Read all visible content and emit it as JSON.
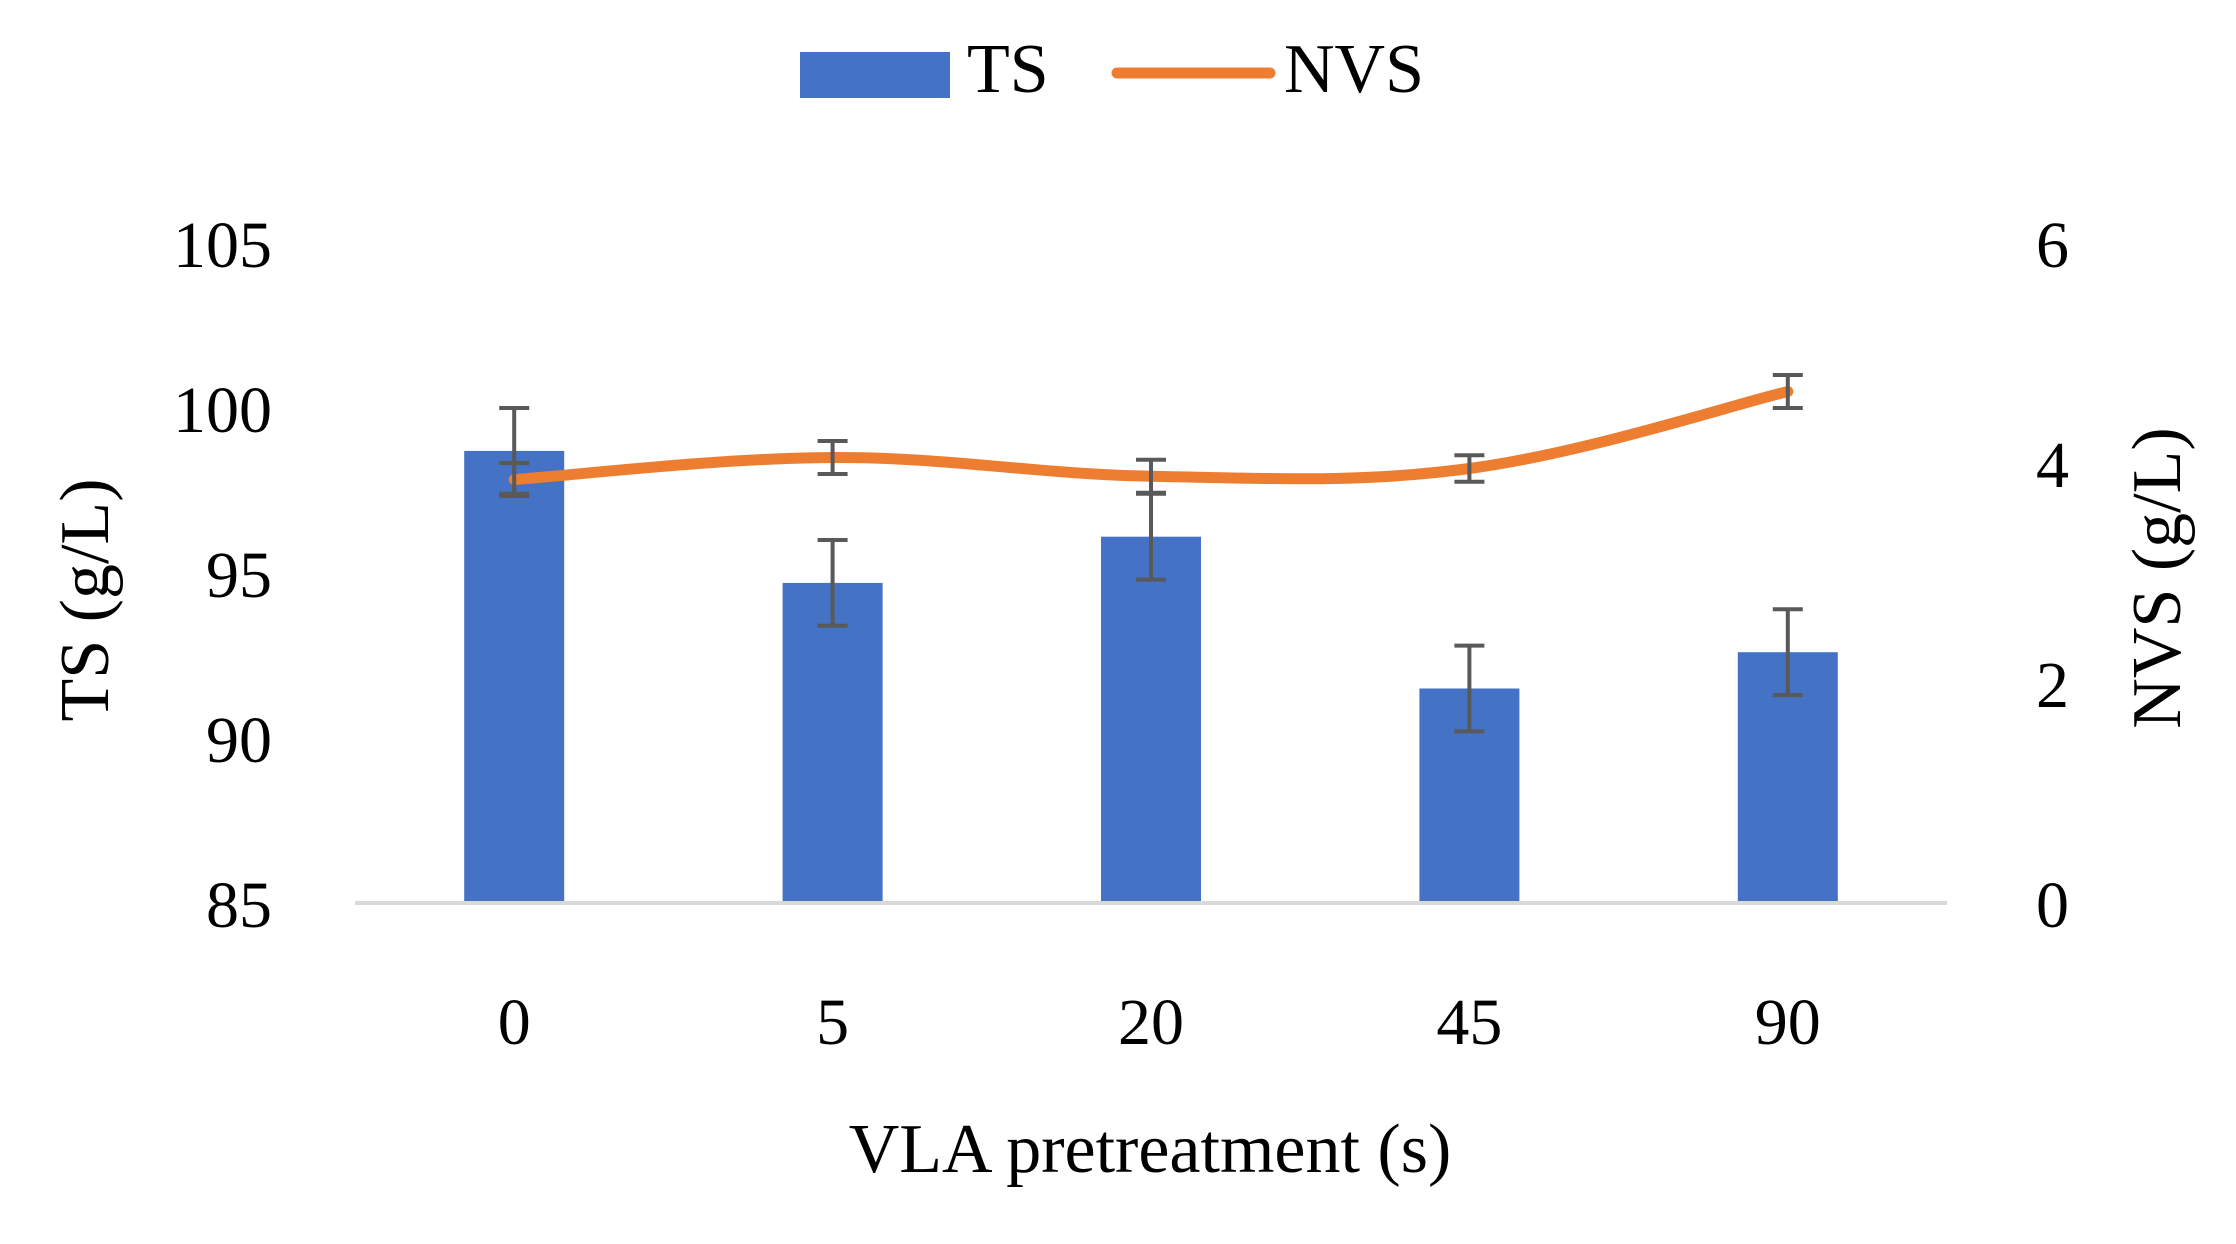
{
  "chart_data": {
    "type": "bar+line",
    "title": "",
    "categories": [
      "0",
      "5",
      "20",
      "45",
      "90"
    ],
    "xlabel": "VLA pretreatment (s)",
    "ylabel_left": "TS (g/L)",
    "ylabel_right": "NVS (g/L)",
    "ylim_left": [
      85,
      105
    ],
    "yticks_left": [
      "85",
      "90",
      "95",
      "100",
      "105"
    ],
    "ylim_right": [
      0,
      6
    ],
    "yticks_right": [
      "0",
      "2",
      "4",
      "6"
    ],
    "grid": false,
    "legend": "top-center",
    "series": [
      {
        "name": "TS",
        "kind": "bar",
        "axis": "left",
        "color": "#4472C4",
        "values": [
          98.7,
          94.7,
          96.1,
          91.5,
          92.6
        ],
        "errors": [
          1.3,
          1.3,
          1.3,
          1.3,
          1.3
        ]
      },
      {
        "name": "NVS",
        "kind": "line",
        "axis": "right",
        "color": "#ED7D31",
        "values": [
          3.85,
          4.05,
          3.88,
          3.95,
          4.65
        ],
        "errors": [
          0.15,
          0.15,
          0.15,
          0.12,
          0.15
        ]
      }
    ]
  }
}
